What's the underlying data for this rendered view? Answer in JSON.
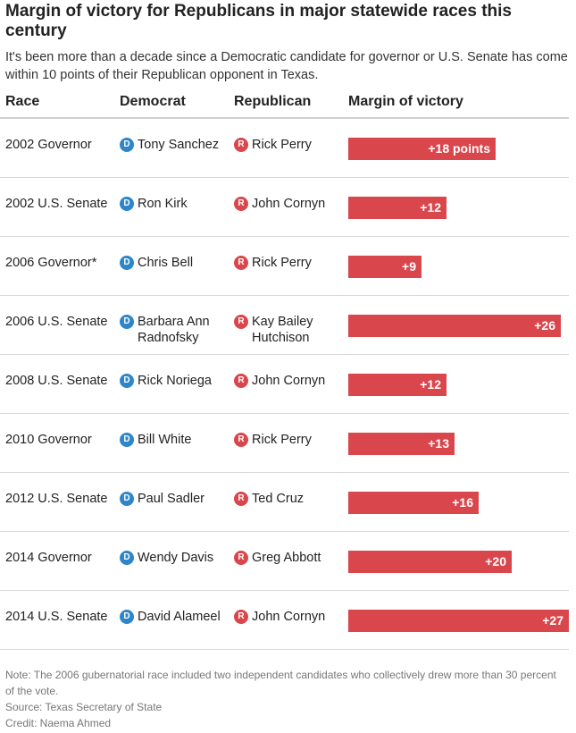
{
  "chart_data": {
    "type": "table",
    "title": "Margin of victory for Republicans in major statewide races this century",
    "subtitle": "It's been more than a decade since a Democratic candidate for governor or U.S. Senate has come within 10 points of their Republican opponent in Texas.",
    "columns": [
      "Race",
      "Democrat",
      "Republican",
      "Margin of victory"
    ],
    "party_badges": {
      "democrat": "D",
      "republican": "R"
    },
    "rows": [
      {
        "race": "2002 Governor",
        "democrat": "Tony Sanchez",
        "republican": "Rick Perry",
        "margin": 18,
        "margin_label": "+18 points"
      },
      {
        "race": "2002 U.S. Senate",
        "democrat": "Ron Kirk",
        "republican": "John Cornyn",
        "margin": 12,
        "margin_label": "+12"
      },
      {
        "race": "2006 Governor*",
        "democrat": "Chris Bell",
        "republican": "Rick Perry",
        "margin": 9,
        "margin_label": "+9"
      },
      {
        "race": "2006 U.S. Senate",
        "democrat": "Barbara Ann Radnofsky",
        "republican": "Kay Bailey Hutchison",
        "margin": 26,
        "margin_label": "+26"
      },
      {
        "race": "2008 U.S. Senate",
        "democrat": "Rick Noriega",
        "republican": "John Cornyn",
        "margin": 12,
        "margin_label": "+12"
      },
      {
        "race": "2010 Governor",
        "democrat": "Bill White",
        "republican": "Rick Perry",
        "margin": 13,
        "margin_label": "+13"
      },
      {
        "race": "2012 U.S. Senate",
        "democrat": "Paul Sadler",
        "republican": "Ted Cruz",
        "margin": 16,
        "margin_label": "+16"
      },
      {
        "race": "2014 Governor",
        "democrat": "Wendy Davis",
        "republican": "Greg Abbott",
        "margin": 20,
        "margin_label": "+20"
      },
      {
        "race": "2014 U.S. Senate",
        "democrat": "David Alameel",
        "republican": "John Cornyn",
        "margin": 27,
        "margin_label": "+27"
      }
    ],
    "xlim": [
      0,
      27
    ],
    "colors": {
      "democrat": "#2e86c9",
      "republican": "#d9474d"
    }
  },
  "footer": {
    "note": "Note: The 2006 gubernatorial race included two independent candidates who collectively drew more than 30 percent of the vote.",
    "source": "Source: Texas Secretary of State",
    "credit": "Credit: Naema Ahmed"
  }
}
